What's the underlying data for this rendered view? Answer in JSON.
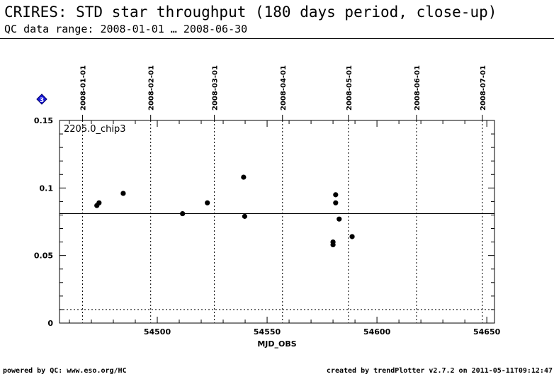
{
  "header": {
    "title": "CRIRES: STD star throughput (180 days period, close-up)",
    "subtitle": "QC data range: 2008-01-01 … 2008-06-30"
  },
  "footer": {
    "left": "powered by QC: www.eso.org/HC",
    "right": "created by trendPlotter v2.7.2 on 2011-05-11T09:12:47"
  },
  "badge": {
    "text": "3",
    "color": "#1a1adc"
  },
  "chart_data": {
    "type": "scatter",
    "panel_label": "2205.0_chip3",
    "xlabel": "MJD_OBS",
    "ylabel": "",
    "xlim": [
      54455.5,
      54653.5
    ],
    "ylim": [
      0,
      0.15
    ],
    "x_ticks": [
      54500,
      54550,
      54600,
      54650
    ],
    "y_ticks": [
      0,
      0.05,
      0.1,
      0.15
    ],
    "y_tick_labels": [
      "0",
      "0.05",
      "0.1",
      "0.15"
    ],
    "date_markers": [
      {
        "mjd": 54466,
        "label": "2008-01-01"
      },
      {
        "mjd": 54497,
        "label": "2008-02-01"
      },
      {
        "mjd": 54526,
        "label": "2008-03-01"
      },
      {
        "mjd": 54557,
        "label": "2008-04-01"
      },
      {
        "mjd": 54587,
        "label": "2008-05-01"
      },
      {
        "mjd": 54618,
        "label": "2008-06-01"
      },
      {
        "mjd": 54648,
        "label": "2008-07-01"
      }
    ],
    "reference_lines": [
      {
        "y": 0.081,
        "style": "solid"
      },
      {
        "y": 0.01,
        "style": "dotted"
      }
    ],
    "series": [
      {
        "points": [
          [
            54472.5,
            0.087
          ],
          [
            54473.5,
            0.089
          ],
          [
            54484.5,
            0.096
          ],
          [
            54511.5,
            0.081
          ],
          [
            54522.8,
            0.089
          ],
          [
            54539.3,
            0.108
          ],
          [
            54539.8,
            0.079
          ],
          [
            54580.0,
            0.06
          ],
          [
            54580.0,
            0.058
          ],
          [
            54581.2,
            0.095
          ],
          [
            54581.2,
            0.089
          ],
          [
            54582.8,
            0.077
          ],
          [
            54588.7,
            0.064
          ]
        ]
      }
    ],
    "grid": false,
    "colors": {
      "points": "#000000",
      "axes": "#000000"
    }
  }
}
